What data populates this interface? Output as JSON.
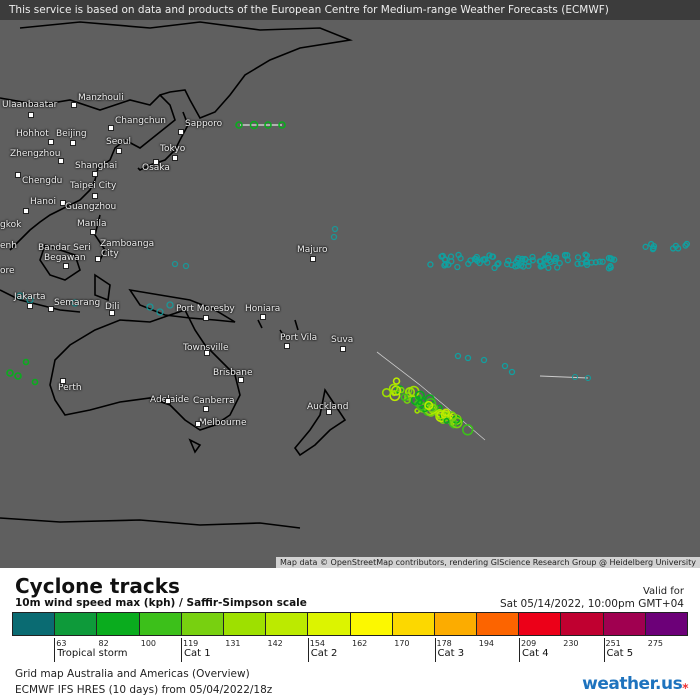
{
  "notice": "This service is based on data and products of the European Centre for Medium-range Weather Forecasts (ECMWF)",
  "attribution": "Map data © OpenStreetMap contributors, rendering GIScience Research Group @ Heidelberg University",
  "cities": [
    {
      "name": "Ulaanbaatar"
    },
    {
      "name": "Manzhouli"
    },
    {
      "name": "Changchun"
    },
    {
      "name": "Sapporo"
    },
    {
      "name": "Hohhot"
    },
    {
      "name": "Beijing"
    },
    {
      "name": "Seoul"
    },
    {
      "name": "Tokyo"
    },
    {
      "name": "Zhengzhou"
    },
    {
      "name": "Osaka"
    },
    {
      "name": "Shanghai"
    },
    {
      "name": "Chengdu"
    },
    {
      "name": "Taipei City"
    },
    {
      "name": "Hanoi"
    },
    {
      "name": "Guangzhou"
    },
    {
      "name": "Manila"
    },
    {
      "name": "Bandar Seri"
    },
    {
      "name": "Begawan"
    },
    {
      "name": "Zamboanga"
    },
    {
      "name": "City"
    },
    {
      "name": "Majuro"
    },
    {
      "name": "Jakarta"
    },
    {
      "name": "Semarang"
    },
    {
      "name": "Dili"
    },
    {
      "name": "Port Moresby"
    },
    {
      "name": "Honiara"
    },
    {
      "name": "Port Vila"
    },
    {
      "name": "Suva"
    },
    {
      "name": "Townsville"
    },
    {
      "name": "Brisbane"
    },
    {
      "name": "Perth"
    },
    {
      "name": "Adelaide"
    },
    {
      "name": "Canberra"
    },
    {
      "name": "Melbourne"
    },
    {
      "name": "Auckland"
    },
    {
      "name": "gkok"
    },
    {
      "name": "enh"
    },
    {
      "name": "ore"
    }
  ],
  "legend": {
    "title": "Cyclone tracks",
    "subtitle": "10m wind speed max (kph) / Saffir-Simpson scale",
    "valid_label": "Valid for",
    "valid_time": "Sat 05/14/2022, 10:00pm GMT+04",
    "colors": [
      "#0a6b72",
      "#0e9a3a",
      "#0aac1e",
      "#3cc01a",
      "#78d010",
      "#9ee000",
      "#bcea00",
      "#dcf400",
      "#fcf800",
      "#fcd800",
      "#fcac00",
      "#fc6400",
      "#ec0018",
      "#c00030",
      "#a00050",
      "#6c0078"
    ],
    "ticks": [
      "63",
      "82",
      "100",
      "119",
      "131",
      "142",
      "154",
      "162",
      "170",
      "178",
      "194",
      "209",
      "230",
      "251",
      "275"
    ],
    "categories": [
      "Tropical storm",
      "Cat 1",
      "Cat 2",
      "Cat 3",
      "Cat 4",
      "Cat 5"
    ],
    "footer_line1": "Grid map Australia and Americas (Overview)",
    "footer_line2": "ECMWF IFS HRES (10 days) from  05/04/2022/18z",
    "logo": "weather.us"
  }
}
